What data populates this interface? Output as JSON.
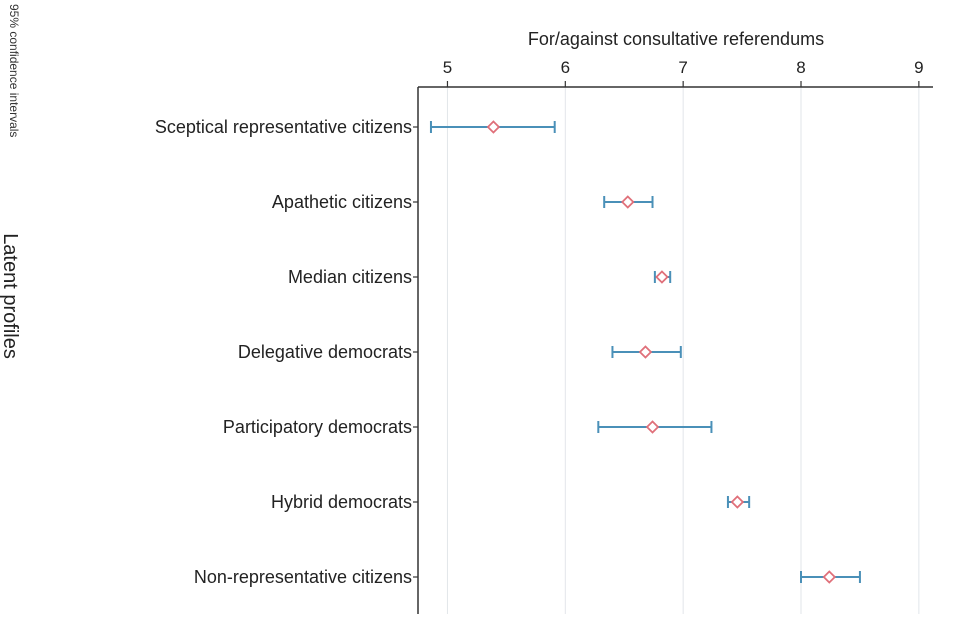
{
  "chart_data": {
    "type": "scatter",
    "subtype": "dot-and-whisker",
    "orientation": "horizontal",
    "title": "",
    "xlabel": "For/against consultative referendums",
    "ylabel": "Latent profiles",
    "note": "95% confidence intervals",
    "x_axis_position": "top",
    "xlim": [
      4.75,
      9.12
    ],
    "xticks": [
      5,
      6,
      7,
      8,
      9
    ],
    "grid": true,
    "categories": [
      "Sceptical representative citizens",
      "Apathetic citizens",
      "Median citizens",
      "Delegative democrats",
      "Participatory democrats",
      "Hybrid democrats",
      "Non-representative citizens"
    ],
    "series": [
      {
        "estimate": [
          5.39,
          6.53,
          6.82,
          6.68,
          6.74,
          7.46,
          8.24
        ],
        "ci_low": [
          4.86,
          6.33,
          6.76,
          6.4,
          6.28,
          7.38,
          8.0
        ],
        "ci_high": [
          5.91,
          6.74,
          6.89,
          6.98,
          7.24,
          7.56,
          8.5
        ]
      }
    ],
    "colors": {
      "marker": "#e0707a",
      "errorbar": "#4a90b8",
      "grid": "#e2e6ea",
      "axis": "#333333"
    }
  }
}
